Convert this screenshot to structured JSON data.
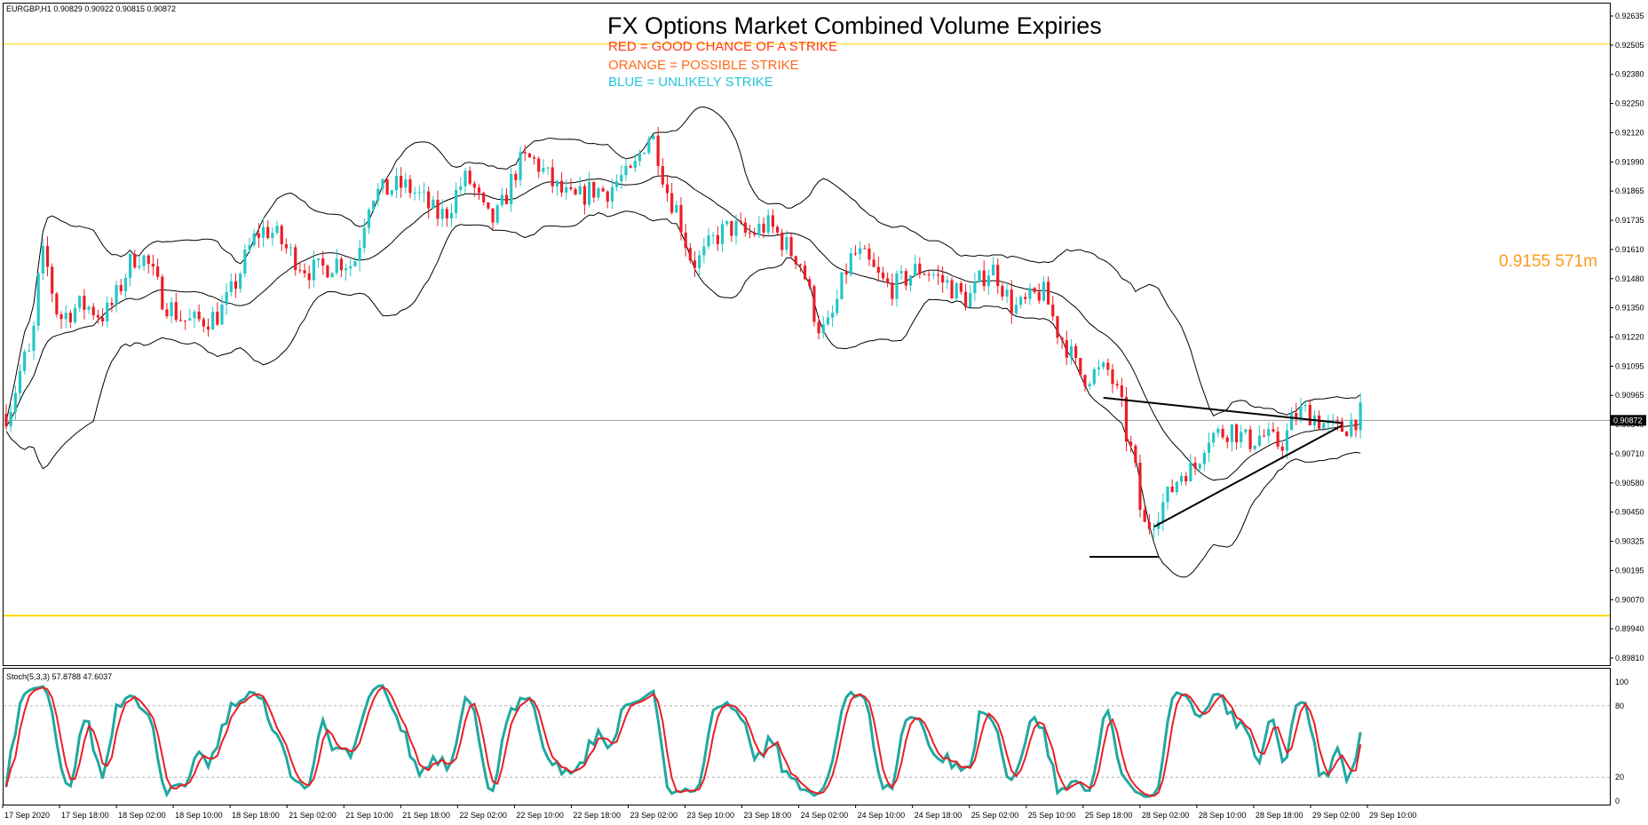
{
  "header": {
    "symbol_info": "EURGBP,H1  0.90829 0.90922 0.90815 0.90872"
  },
  "annotations": {
    "title": "FX Options Market Combined Volume Expiries",
    "legend": [
      {
        "text": "RED = GOOD CHANCE OF A STRIKE",
        "color": "#ff3b1f"
      },
      {
        "text": "ORANGE = POSSIBLE STRIKE",
        "color": "#ff6a1a"
      },
      {
        "text": "BLUE = UNLIKELY STRIKE",
        "color": "#26c6d9"
      }
    ],
    "expiry_label": "0.9155 571m",
    "expiry_label_color": "#ff9a1a"
  },
  "colors": {
    "bull": "#26c6c6",
    "bear": "#ee1c25",
    "stoch_main": "#20a8a0",
    "stoch_signal": "#ee1c25",
    "level_line": "#ffd700"
  },
  "indicator": {
    "label": "Stoch(5,3,3) 57.8788 47.6037",
    "main_value": 57.8788,
    "signal_value": 47.6037,
    "levels": [
      80,
      20
    ],
    "y_ticks": [
      "100",
      "80",
      "20",
      "0"
    ]
  },
  "chart_data": {
    "type": "candlestick",
    "symbol": "EURGBP",
    "timeframe": "H1",
    "current_price": 0.90872,
    "current_price_label": "0.90872",
    "horizontal_levels": [
      0.92505,
      0.90025
    ],
    "ylim": [
      0.8981,
      0.9268
    ],
    "y_ticks": [
      "0.92635",
      "0.92505",
      "0.92380",
      "0.92250",
      "0.92120",
      "0.91990",
      "0.91865",
      "0.91735",
      "0.91610",
      "0.91480",
      "0.91350",
      "0.91220",
      "0.91095",
      "0.90965",
      "0.90840",
      "0.90710",
      "0.90580",
      "0.90450",
      "0.90325",
      "0.90195",
      "0.90070",
      "0.89940",
      "0.89810"
    ],
    "x_ticks": [
      "17 Sep 2020",
      "17 Sep 18:00",
      "18 Sep 02:00",
      "18 Sep 10:00",
      "18 Sep 18:00",
      "21 Sep 02:00",
      "21 Sep 10:00",
      "21 Sep 18:00",
      "22 Sep 02:00",
      "22 Sep 10:00",
      "22 Sep 18:00",
      "23 Sep 02:00",
      "23 Sep 10:00",
      "23 Sep 18:00",
      "24 Sep 02:00",
      "24 Sep 10:00",
      "24 Sep 18:00",
      "25 Sep 02:00",
      "25 Sep 10:00",
      "25 Sep 18:00",
      "28 Sep 02:00",
      "28 Sep 10:00",
      "28 Sep 18:00",
      "29 Sep 02:00",
      "29 Sep 10:00"
    ],
    "anchors": [
      [
        0,
        0.909
      ],
      [
        5,
        0.9112
      ],
      [
        8,
        0.916
      ],
      [
        12,
        0.9135
      ],
      [
        20,
        0.9132
      ],
      [
        28,
        0.9158
      ],
      [
        35,
        0.9138
      ],
      [
        45,
        0.9128
      ],
      [
        55,
        0.917
      ],
      [
        62,
        0.9158
      ],
      [
        75,
        0.9152
      ],
      [
        80,
        0.919
      ],
      [
        90,
        0.9183
      ],
      [
        95,
        0.918
      ],
      [
        100,
        0.9188
      ],
      [
        105,
        0.9175
      ],
      [
        112,
        0.9198
      ],
      [
        120,
        0.919
      ],
      [
        125,
        0.9185
      ],
      [
        130,
        0.9183
      ],
      [
        135,
        0.9196
      ],
      [
        140,
        0.921
      ],
      [
        145,
        0.918
      ],
      [
        150,
        0.916
      ],
      [
        155,
        0.9165
      ],
      [
        160,
        0.9168
      ],
      [
        165,
        0.9175
      ],
      [
        172,
        0.9155
      ],
      [
        178,
        0.913
      ],
      [
        185,
        0.9155
      ],
      [
        195,
        0.9148
      ],
      [
        205,
        0.915
      ],
      [
        210,
        0.914
      ],
      [
        215,
        0.915
      ],
      [
        220,
        0.914
      ],
      [
        225,
        0.914
      ],
      [
        230,
        0.9122
      ],
      [
        235,
        0.911
      ],
      [
        240,
        0.9105
      ],
      [
        242,
        0.9095
      ],
      [
        245,
        0.9075
      ],
      [
        248,
        0.9045
      ],
      [
        252,
        0.905
      ],
      [
        258,
        0.9065
      ],
      [
        262,
        0.9085
      ],
      [
        266,
        0.9082
      ],
      [
        270,
        0.9075
      ],
      [
        274,
        0.9083
      ],
      [
        278,
        0.908
      ],
      [
        281,
        0.9087
      ]
    ],
    "triangle_lines": [
      {
        "from": [
          239,
          0.9097
        ],
        "to": [
          291,
          0.9086
        ]
      },
      {
        "from": [
          250,
          0.9041
        ],
        "to": [
          291,
          0.9085
        ]
      },
      {
        "from": [
          236,
          0.9028
        ],
        "to": [
          251,
          0.9028
        ]
      }
    ],
    "indicators": [
      "Bollinger Bands(20,2)",
      "Stochastic(5,3,3)"
    ]
  }
}
